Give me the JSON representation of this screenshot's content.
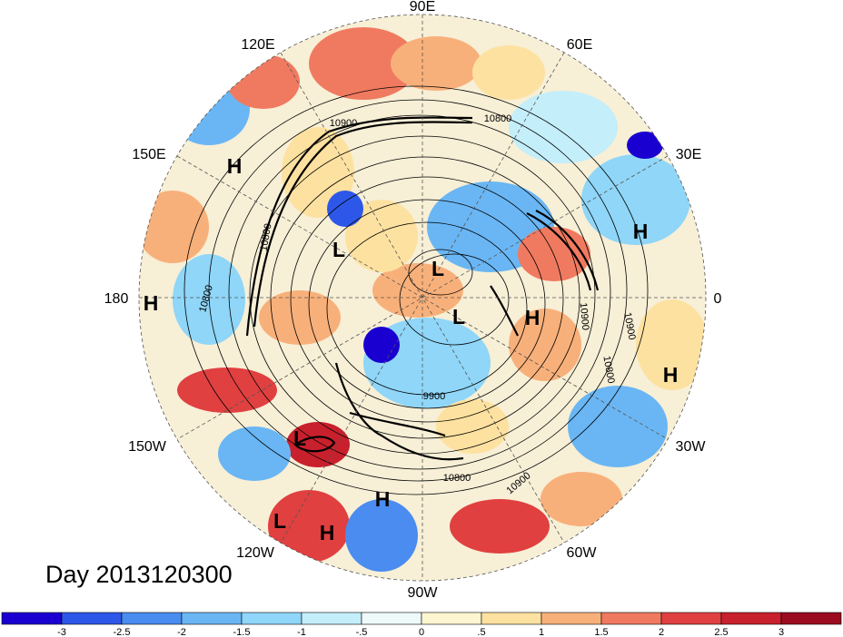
{
  "map": {
    "date_label": "Day 2013120300",
    "longitude_labels": [
      "90E",
      "60E",
      "30E",
      "0",
      "30W",
      "60W",
      "90W",
      "120W",
      "150W",
      "180",
      "150E",
      "120E"
    ],
    "pressure_centers": [
      "H",
      "H",
      "H",
      "H",
      "H",
      "H",
      "H",
      "L",
      "L",
      "L",
      "L",
      "L"
    ],
    "contour_labels": [
      "10800",
      "10900",
      "10800",
      "10800",
      "10900",
      "10800",
      "10900",
      "9900",
      "10800",
      "10900"
    ],
    "colorbar": {
      "ticks": [
        "-3",
        "-2.5",
        "-2",
        "-1.5",
        "-1",
        "-.5",
        "0",
        ".5",
        "1",
        "1.5",
        "2",
        "2.5",
        "3"
      ],
      "colors": [
        "#1a00d0",
        "#2d57e8",
        "#4a8cf0",
        "#6ab6f4",
        "#8fd6f8",
        "#c4eefa",
        "#eefafa",
        "#fdf6d0",
        "#fde1a0",
        "#f8b07a",
        "#f07a60",
        "#e04040",
        "#c8202c",
        "#9c0c20"
      ]
    }
  }
}
